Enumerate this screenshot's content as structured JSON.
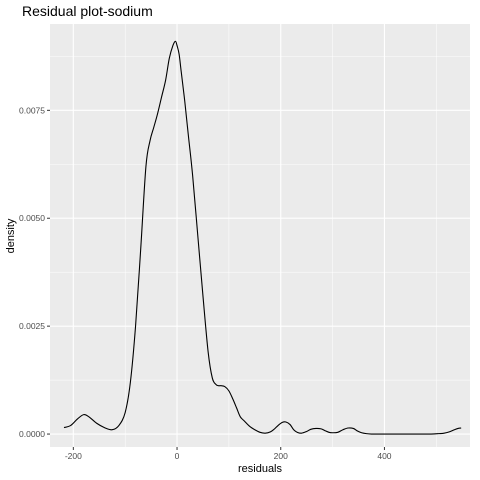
{
  "chart_data": {
    "type": "line",
    "title": "Residual plot-sodium",
    "xlabel": "residuals",
    "ylabel": "density",
    "xlim": [
      -245,
      565
    ],
    "ylim": [
      -0.0003,
      0.0095
    ],
    "x_ticks": [
      -200,
      0,
      200,
      400
    ],
    "x_tick_labels": [
      "-200",
      "0",
      "200",
      "400"
    ],
    "y_ticks": [
      0,
      0.0025,
      0.005,
      0.0075
    ],
    "y_tick_labels": [
      "0.0000",
      "0.0025",
      "0.0050",
      "0.0075"
    ],
    "grid": true,
    "legend": "none",
    "colors": {
      "panel": "#ebebeb",
      "grid": "#ffffff",
      "line": "#000000"
    },
    "series": [
      {
        "x": [
          -218,
          -205,
          -192,
          -180,
          -170,
          -155,
          -140,
          -125,
          -112,
          -100,
          -90,
          -80,
          -70,
          -60,
          -52,
          -45,
          -38,
          -30,
          -22,
          -15,
          -8,
          -3,
          0,
          4,
          8,
          15,
          22,
          30,
          40,
          50,
          60,
          68,
          75,
          80,
          85,
          92,
          100,
          108,
          115,
          122,
          130,
          140,
          150,
          160,
          170,
          180,
          188,
          195,
          203,
          210,
          218,
          225,
          232,
          240,
          250,
          258,
          268,
          278,
          285,
          293,
          300,
          310,
          320,
          330,
          340,
          348,
          356,
          365,
          375,
          390,
          410,
          430,
          450,
          470,
          490,
          505,
          515,
          525,
          535,
          542,
          548
        ],
        "y": [
          0.00015,
          0.0002,
          0.00035,
          0.00045,
          0.0004,
          0.00025,
          0.00015,
          0.0001,
          0.0002,
          0.0005,
          0.0012,
          0.0025,
          0.0043,
          0.0062,
          0.0068,
          0.0071,
          0.0074,
          0.0078,
          0.0082,
          0.0087,
          0.009,
          0.0091,
          0.009,
          0.0088,
          0.0084,
          0.0077,
          0.0069,
          0.006,
          0.0046,
          0.0032,
          0.0019,
          0.0013,
          0.00115,
          0.00112,
          0.00112,
          0.0011,
          0.001,
          0.0008,
          0.0006,
          0.0004,
          0.0003,
          0.00018,
          0.0001,
          4e-05,
          2e-05,
          5e-05,
          0.00012,
          0.0002,
          0.00027,
          0.00028,
          0.00022,
          0.0001,
          4e-05,
          2e-05,
          6e-05,
          0.00011,
          0.00013,
          0.00012,
          8e-05,
          4e-05,
          3e-05,
          4e-05,
          0.0001,
          0.00014,
          0.00013,
          7e-05,
          3e-05,
          1e-05,
          0.0,
          0.0,
          0.0,
          0.0,
          0.0,
          0.0,
          0.0,
          1e-05,
          2e-05,
          5e-05,
          0.0001,
          0.00013,
          0.00014
        ]
      }
    ]
  }
}
